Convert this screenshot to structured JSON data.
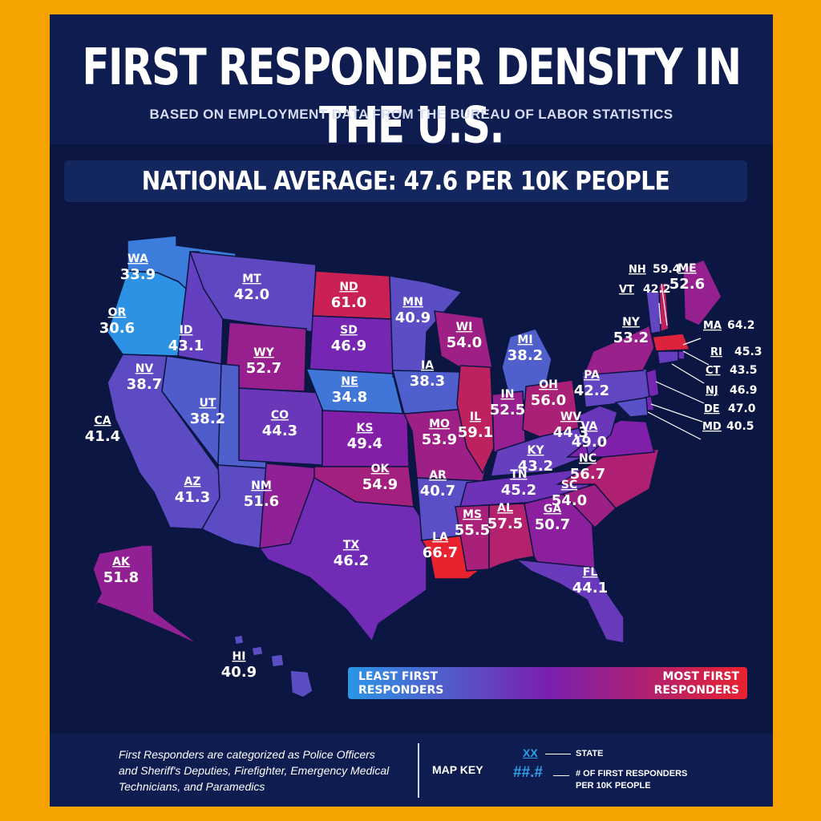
{
  "title": "FIRST RESPONDER DENSITY IN THE U.S.",
  "subtitle": "BASED ON EMPLOYMENT DATA FROM THE BUREAU OF LABOR STATISTICS",
  "national_average": "NATIONAL AVERAGE: 47.6 PER 10K PEOPLE",
  "legend": {
    "least": "LEAST FIRST RESPONDERS",
    "most": "MOST FIRST RESPONDERS",
    "low_color": "#2b96e6",
    "mid_color": "#7a1fb0",
    "high_color": "#e8222f"
  },
  "footer": {
    "note": "First Responders are categorized as Police Officers and Sheriff's Deputies, Firefighter, Emergency Medical Technicians, and Paramedics",
    "map_key_label": "MAP KEY",
    "state_sample": "XX",
    "state_desc": "STATE",
    "value_sample": "##.#",
    "value_desc": "# OF FIRST RESPONDERS PER 10K PEOPLE"
  },
  "states": [
    {
      "abbr": "WA",
      "value": "33.9"
    },
    {
      "abbr": "OR",
      "value": "30.6"
    },
    {
      "abbr": "CA",
      "value": "41.4"
    },
    {
      "abbr": "NV",
      "value": "38.7"
    },
    {
      "abbr": "ID",
      "value": "43.1"
    },
    {
      "abbr": "MT",
      "value": "42.0"
    },
    {
      "abbr": "WY",
      "value": "52.7"
    },
    {
      "abbr": "UT",
      "value": "38.2"
    },
    {
      "abbr": "AZ",
      "value": "41.3"
    },
    {
      "abbr": "CO",
      "value": "44.3"
    },
    {
      "abbr": "NM",
      "value": "51.6"
    },
    {
      "abbr": "ND",
      "value": "61.0"
    },
    {
      "abbr": "SD",
      "value": "46.9"
    },
    {
      "abbr": "NE",
      "value": "34.8"
    },
    {
      "abbr": "KS",
      "value": "49.4"
    },
    {
      "abbr": "OK",
      "value": "54.9"
    },
    {
      "abbr": "TX",
      "value": "46.2"
    },
    {
      "abbr": "MN",
      "value": "40.9"
    },
    {
      "abbr": "IA",
      "value": "38.3"
    },
    {
      "abbr": "MO",
      "value": "53.9"
    },
    {
      "abbr": "AR",
      "value": "40.7"
    },
    {
      "abbr": "LA",
      "value": "66.7"
    },
    {
      "abbr": "WI",
      "value": "54.0"
    },
    {
      "abbr": "IL",
      "value": "59.1"
    },
    {
      "abbr": "MI",
      "value": "38.2"
    },
    {
      "abbr": "IN",
      "value": "52.5"
    },
    {
      "abbr": "OH",
      "value": "56.0"
    },
    {
      "abbr": "KY",
      "value": "43.2"
    },
    {
      "abbr": "TN",
      "value": "45.2"
    },
    {
      "abbr": "MS",
      "value": "55.5"
    },
    {
      "abbr": "AL",
      "value": "57.5"
    },
    {
      "abbr": "GA",
      "value": "50.7"
    },
    {
      "abbr": "FL",
      "value": "44.1"
    },
    {
      "abbr": "SC",
      "value": "54.0"
    },
    {
      "abbr": "NC",
      "value": "56.7"
    },
    {
      "abbr": "VA",
      "value": "49.0"
    },
    {
      "abbr": "WV",
      "value": "44.3"
    },
    {
      "abbr": "PA",
      "value": "42.2"
    },
    {
      "abbr": "NY",
      "value": "53.2"
    },
    {
      "abbr": "ME",
      "value": "52.6"
    },
    {
      "abbr": "AK",
      "value": "51.8"
    },
    {
      "abbr": "HI",
      "value": "40.9"
    }
  ],
  "callouts": [
    {
      "abbr": "NH",
      "value": "59.4"
    },
    {
      "abbr": "VT",
      "value": "42.2"
    },
    {
      "abbr": "MA",
      "value": "64.2"
    },
    {
      "abbr": "RI",
      "value": "45.3"
    },
    {
      "abbr": "CT",
      "value": "43.5"
    },
    {
      "abbr": "NJ",
      "value": "46.9"
    },
    {
      "abbr": "DE",
      "value": "47.0"
    },
    {
      "abbr": "MD",
      "value": "40.5"
    }
  ]
}
